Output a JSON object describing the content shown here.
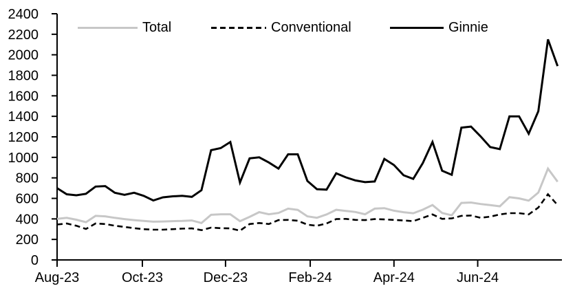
{
  "chart_data": {
    "type": "line",
    "title": "",
    "x_frequency": "weekly",
    "x_axis": {
      "ticks": [
        {
          "label": "Aug-23",
          "week": 0
        },
        {
          "label": "Oct-23",
          "week": 8.86
        },
        {
          "label": "Dec-23",
          "week": 17.5
        },
        {
          "label": "Feb-24",
          "week": 26.3
        },
        {
          "label": "Apr-24",
          "week": 35.0
        },
        {
          "label": "Jun-24",
          "week": 43.7
        }
      ],
      "range_weeks": [
        0,
        52.45
      ]
    },
    "y_axis": {
      "min": 0,
      "max": 2400,
      "step": 200,
      "tick_labels": [
        "0",
        "200",
        "400",
        "600",
        "800",
        "1000",
        "1200",
        "1400",
        "1600",
        "1800",
        "2000",
        "2200",
        "2400"
      ]
    },
    "grid": false,
    "legend_position": "top-inside",
    "series": [
      {
        "name": "Total",
        "color": "#c7c7c7",
        "dash": "solid",
        "width": 3,
        "values": [
          400,
          410,
          392,
          368,
          430,
          425,
          410,
          398,
          388,
          380,
          373,
          375,
          378,
          380,
          385,
          360,
          440,
          445,
          445,
          378,
          420,
          466,
          445,
          458,
          500,
          488,
          425,
          411,
          444,
          489,
          478,
          467,
          445,
          500,
          505,
          480,
          465,
          455,
          490,
          535,
          458,
          435,
          556,
          560,
          545,
          534,
          523,
          612,
          600,
          578,
          657,
          890,
          762
        ]
      },
      {
        "name": "Conventional",
        "color": "#000000",
        "dash": "dashed",
        "width": 2.6,
        "values": [
          345,
          355,
          333,
          302,
          355,
          350,
          333,
          322,
          310,
          300,
          295,
          295,
          300,
          305,
          308,
          290,
          315,
          310,
          308,
          285,
          350,
          360,
          350,
          388,
          390,
          382,
          344,
          333,
          355,
          398,
          400,
          390,
          388,
          398,
          395,
          390,
          385,
          378,
          410,
          444,
          400,
          405,
          430,
          433,
          411,
          422,
          444,
          456,
          456,
          444,
          511,
          640,
          535
        ]
      },
      {
        "name": "Ginnie",
        "color": "#000000",
        "dash": "solid",
        "width": 3,
        "values": [
          700,
          640,
          630,
          645,
          715,
          720,
          655,
          635,
          655,
          625,
          580,
          610,
          620,
          625,
          615,
          680,
          1070,
          1090,
          1150,
          755,
          990,
          1000,
          950,
          890,
          1030,
          1030,
          770,
          690,
          685,
          845,
          805,
          775,
          758,
          765,
          985,
          925,
          825,
          790,
          945,
          1150,
          870,
          830,
          1290,
          1300,
          1205,
          1100,
          1080,
          1400,
          1400,
          1230,
          1450,
          2150,
          1890
        ]
      }
    ]
  }
}
